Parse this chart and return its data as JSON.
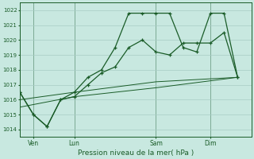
{
  "xlabel": "Pression niveau de la mer( hPa )",
  "ylim": [
    1013.5,
    1022.5
  ],
  "xlim": [
    0,
    34
  ],
  "bg_color": "#c8e8e0",
  "grid_color": "#a8ccc4",
  "line_color": "#1a5c28",
  "day_labels": [
    "Ven",
    "Lun",
    "Sam",
    "Dim"
  ],
  "day_positions": [
    2,
    8,
    20,
    28
  ],
  "vline_positions": [
    2,
    8,
    20,
    28
  ],
  "line1_x": [
    0,
    2,
    4,
    6,
    8,
    10,
    12,
    14,
    16,
    18,
    20,
    22,
    24,
    26,
    28,
    30,
    32
  ],
  "line1_y": [
    1016.5,
    1015.0,
    1014.2,
    1016.0,
    1016.5,
    1017.5,
    1018.0,
    1019.5,
    1021.8,
    1021.8,
    1021.8,
    1021.8,
    1019.5,
    1019.2,
    1021.8,
    1021.8,
    1017.5
  ],
  "line2_x": [
    0,
    2,
    4,
    6,
    8,
    10,
    12,
    14,
    16,
    18,
    20,
    22,
    24,
    26,
    28,
    30,
    32
  ],
  "line2_y": [
    1016.5,
    1015.0,
    1014.2,
    1016.0,
    1016.2,
    1017.0,
    1017.8,
    1018.2,
    1019.5,
    1020.0,
    1019.2,
    1019.0,
    1019.8,
    1019.8,
    1019.8,
    1020.5,
    1017.5
  ],
  "line3_x": [
    0,
    8,
    20,
    32
  ],
  "line3_y": [
    1016.0,
    1016.5,
    1017.2,
    1017.5
  ],
  "line4_x": [
    0,
    8,
    20,
    32
  ],
  "line4_y": [
    1015.5,
    1016.2,
    1016.8,
    1017.5
  ]
}
